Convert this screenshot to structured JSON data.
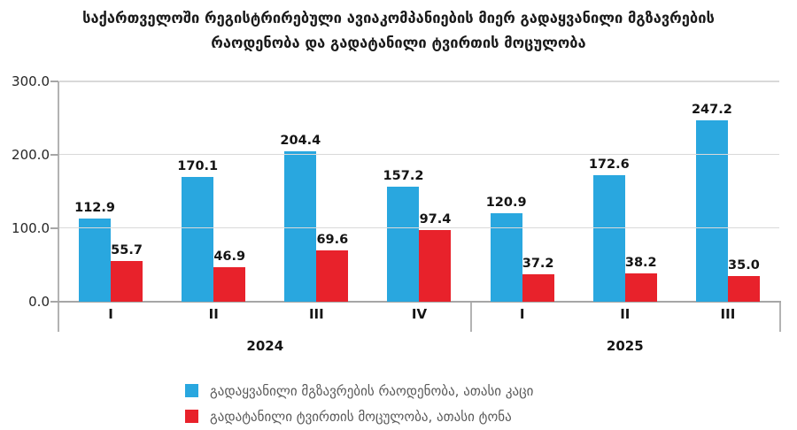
{
  "title": {
    "line1": "საქართველოში რეგისტრირებული ავიაკომპანიების მიერ გადაყვანილი მგზავრების",
    "line2": "რაოდენობა და გადატანილი ტვირთის მოცულობა"
  },
  "chart_data": {
    "type": "bar",
    "categories": [
      "I",
      "II",
      "III",
      "IV",
      "I",
      "II",
      "III"
    ],
    "year_groups": [
      {
        "label": "2024",
        "count": 4
      },
      {
        "label": "2025",
        "count": 3
      }
    ],
    "series": [
      {
        "name": "გადაყვანილი მგზავრების რაოდენობა, ათასი კაცი",
        "color": "#29a7df",
        "values": [
          112.9,
          170.1,
          204.4,
          157.2,
          120.9,
          172.6,
          247.2
        ]
      },
      {
        "name": "გადატანილი ტვირთის მოცულობა, ათასი ტონა",
        "color": "#e8222b",
        "values": [
          55.7,
          46.9,
          69.6,
          97.4,
          37.2,
          38.2,
          35.0
        ]
      }
    ],
    "xlabel": "",
    "ylabel": "",
    "ylim": [
      0,
      300
    ],
    "ytick_step": 100,
    "ytick_labels": [
      "0.0",
      "100.0",
      "200.0",
      "300.0"
    ],
    "grid": true,
    "legend_position": "bottom",
    "value_decimals": 1
  },
  "colors": {
    "passengers_blue": "#29a7df",
    "cargo_red": "#e8222b",
    "gridline": "#d9d9d9",
    "axis": "#a6a6a6",
    "title_text": "#1a1a1a",
    "legend_text": "#595959"
  }
}
